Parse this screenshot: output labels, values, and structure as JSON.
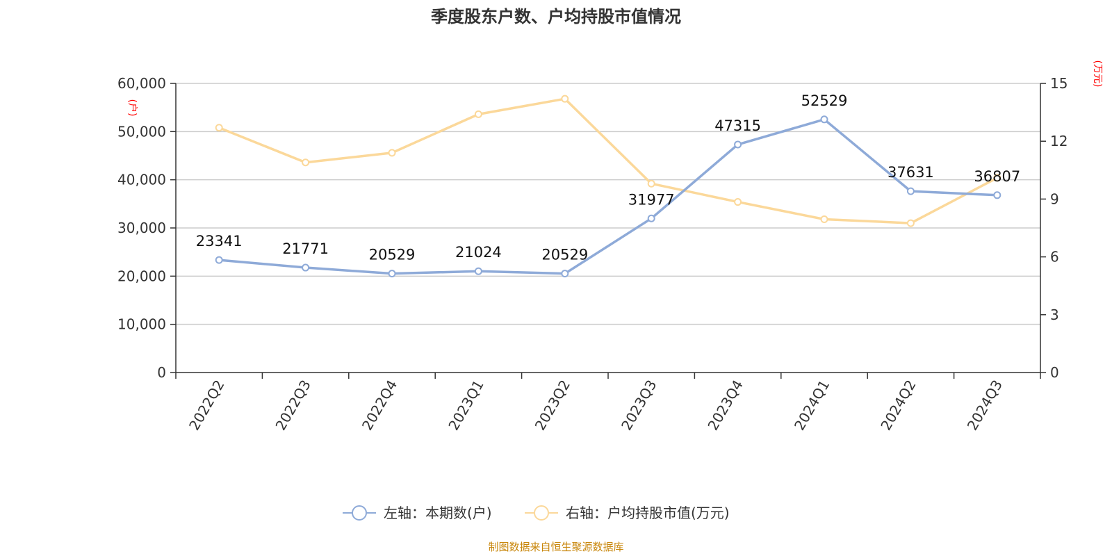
{
  "chart_data": {
    "type": "line",
    "title": "季度股东户数、户均持股市值情况",
    "categories": [
      "2022Q2",
      "2022Q3",
      "2022Q4",
      "2023Q1",
      "2023Q2",
      "2023Q3",
      "2023Q4",
      "2024Q1",
      "2024Q2",
      "2024Q3"
    ],
    "left_axis": {
      "unit": "(户)",
      "ylim": [
        0,
        60000
      ],
      "ticks": [
        0,
        10000,
        20000,
        30000,
        40000,
        50000,
        60000
      ],
      "tick_labels": [
        "0",
        "10,000",
        "20,000",
        "30,000",
        "40,000",
        "50,000",
        "60,000"
      ]
    },
    "right_axis": {
      "unit": "(万元)",
      "ylim": [
        0,
        15
      ],
      "ticks": [
        0,
        3,
        6,
        9,
        12,
        15
      ],
      "tick_labels": [
        "0",
        "3",
        "6",
        "9",
        "12",
        "15"
      ]
    },
    "series": [
      {
        "name": "左轴：本期数(户)",
        "axis": "left",
        "color": "#8eaad8",
        "values": [
          23341,
          21771,
          20529,
          21024,
          20529,
          31977,
          47315,
          52529,
          37631,
          36807
        ],
        "labels": [
          "23341",
          "21771",
          "20529",
          "21024",
          "20529",
          "31977",
          "47315",
          "52529",
          "37631",
          "36807"
        ]
      },
      {
        "name": "右轴：户均持股市值(万元)",
        "axis": "right",
        "color": "#fbd89a",
        "values": [
          12.7,
          10.9,
          11.4,
          13.4,
          14.2,
          9.8,
          8.85,
          7.95,
          7.75,
          10.1
        ]
      }
    ],
    "grid": true,
    "legend_position": "bottom"
  },
  "source_text": "制图数据来自恒生聚源数据库"
}
